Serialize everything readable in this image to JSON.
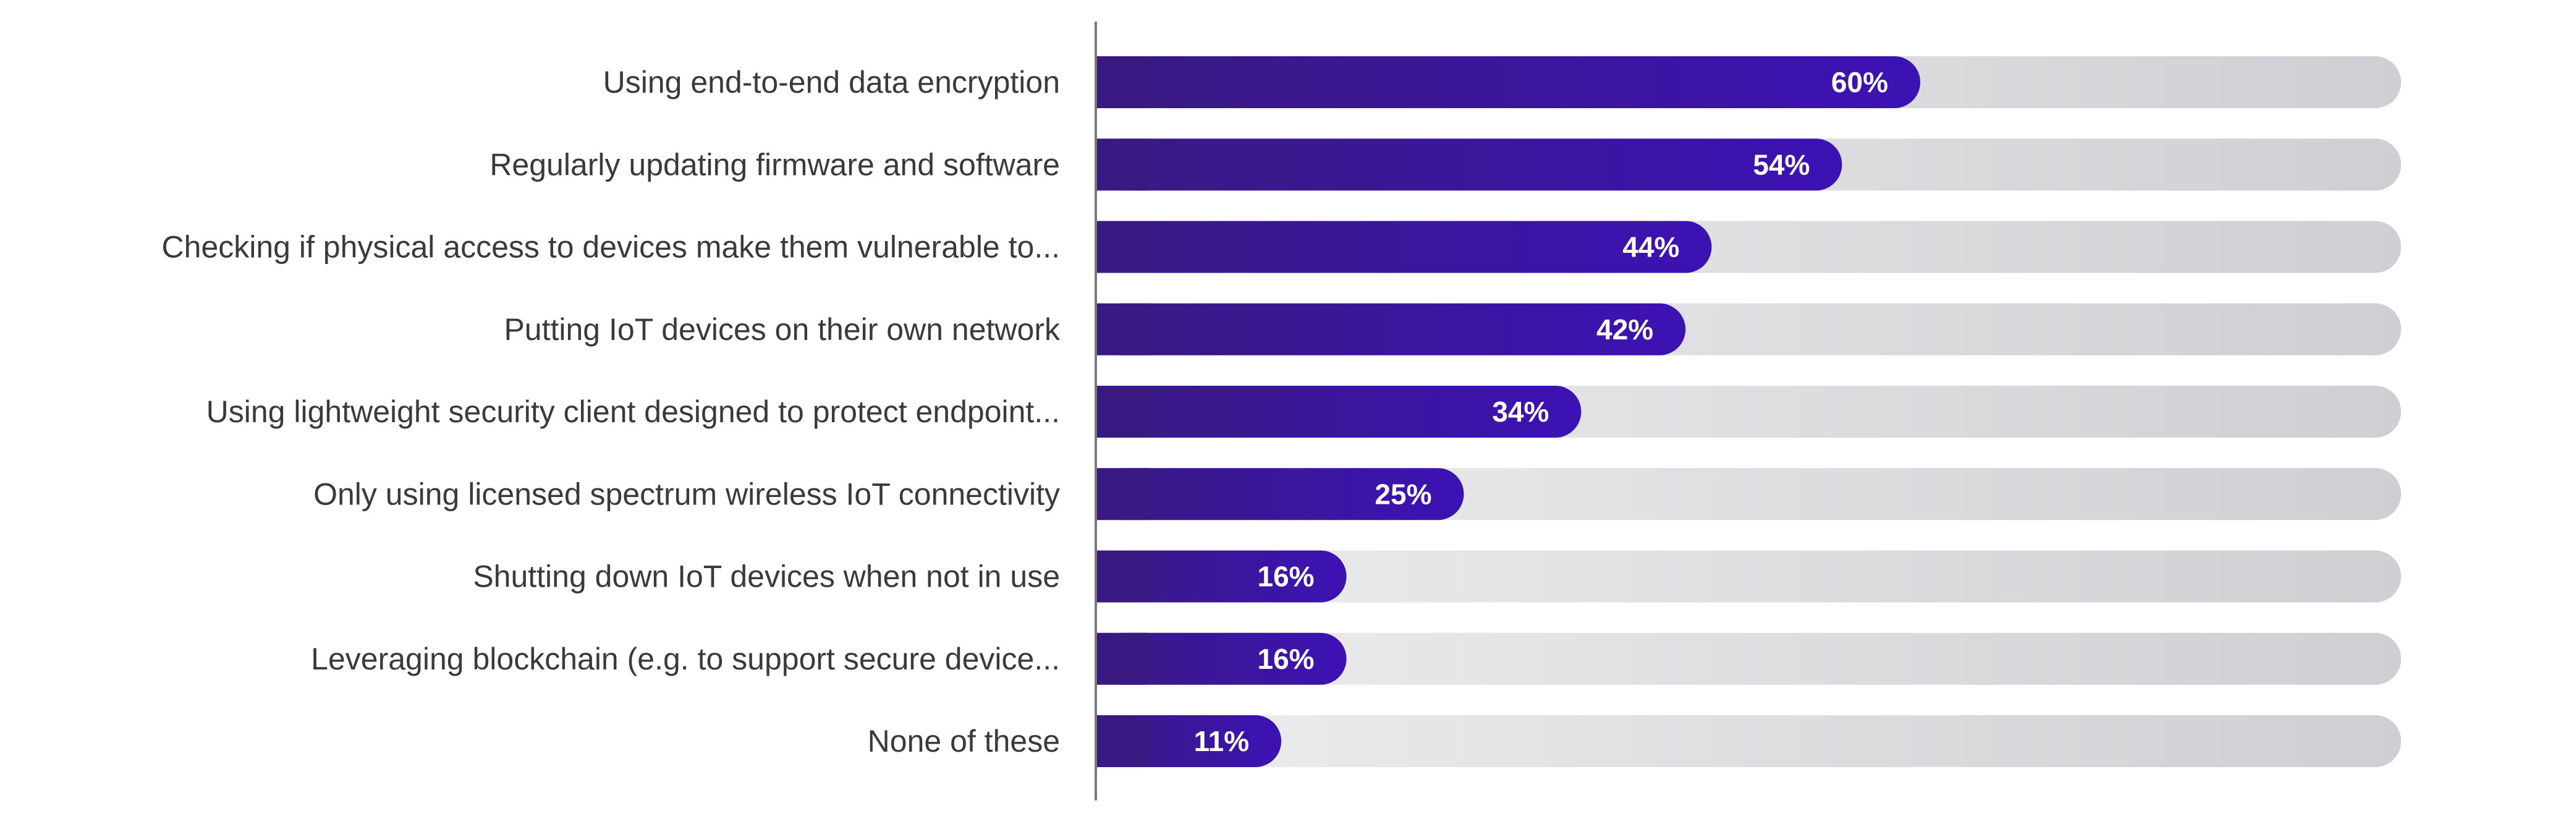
{
  "chart_data": {
    "type": "bar",
    "orientation": "horizontal",
    "categories": [
      "Using end-to-end data encryption",
      "Regularly updating firmware and software",
      "Checking if physical access to devices make them vulnerable to...",
      "Putting IoT devices on their own network",
      "Using lightweight security client designed to protect endpoint...",
      "Only using licensed spectrum wireless IoT connectivity",
      "Shutting down IoT devices when not in use",
      "Leveraging blockchain (e.g. to support secure device...",
      "None of these"
    ],
    "values": [
      60,
      54,
      44,
      42,
      34,
      25,
      16,
      16,
      11
    ],
    "value_labels": [
      "60%",
      "54%",
      "44%",
      "42%",
      "34%",
      "25%",
      "16%",
      "16%",
      "11%"
    ],
    "xlim": [
      0,
      100
    ],
    "grid": false,
    "colors": {
      "bar_start": "#3a1a82",
      "bar_end": "#3d12b4",
      "track_start": "#eeeef0",
      "track_end": "#cfcfd3",
      "label": "#3a3a3a",
      "value_label": "#ffffff",
      "axis": "#7a7a7a"
    }
  }
}
